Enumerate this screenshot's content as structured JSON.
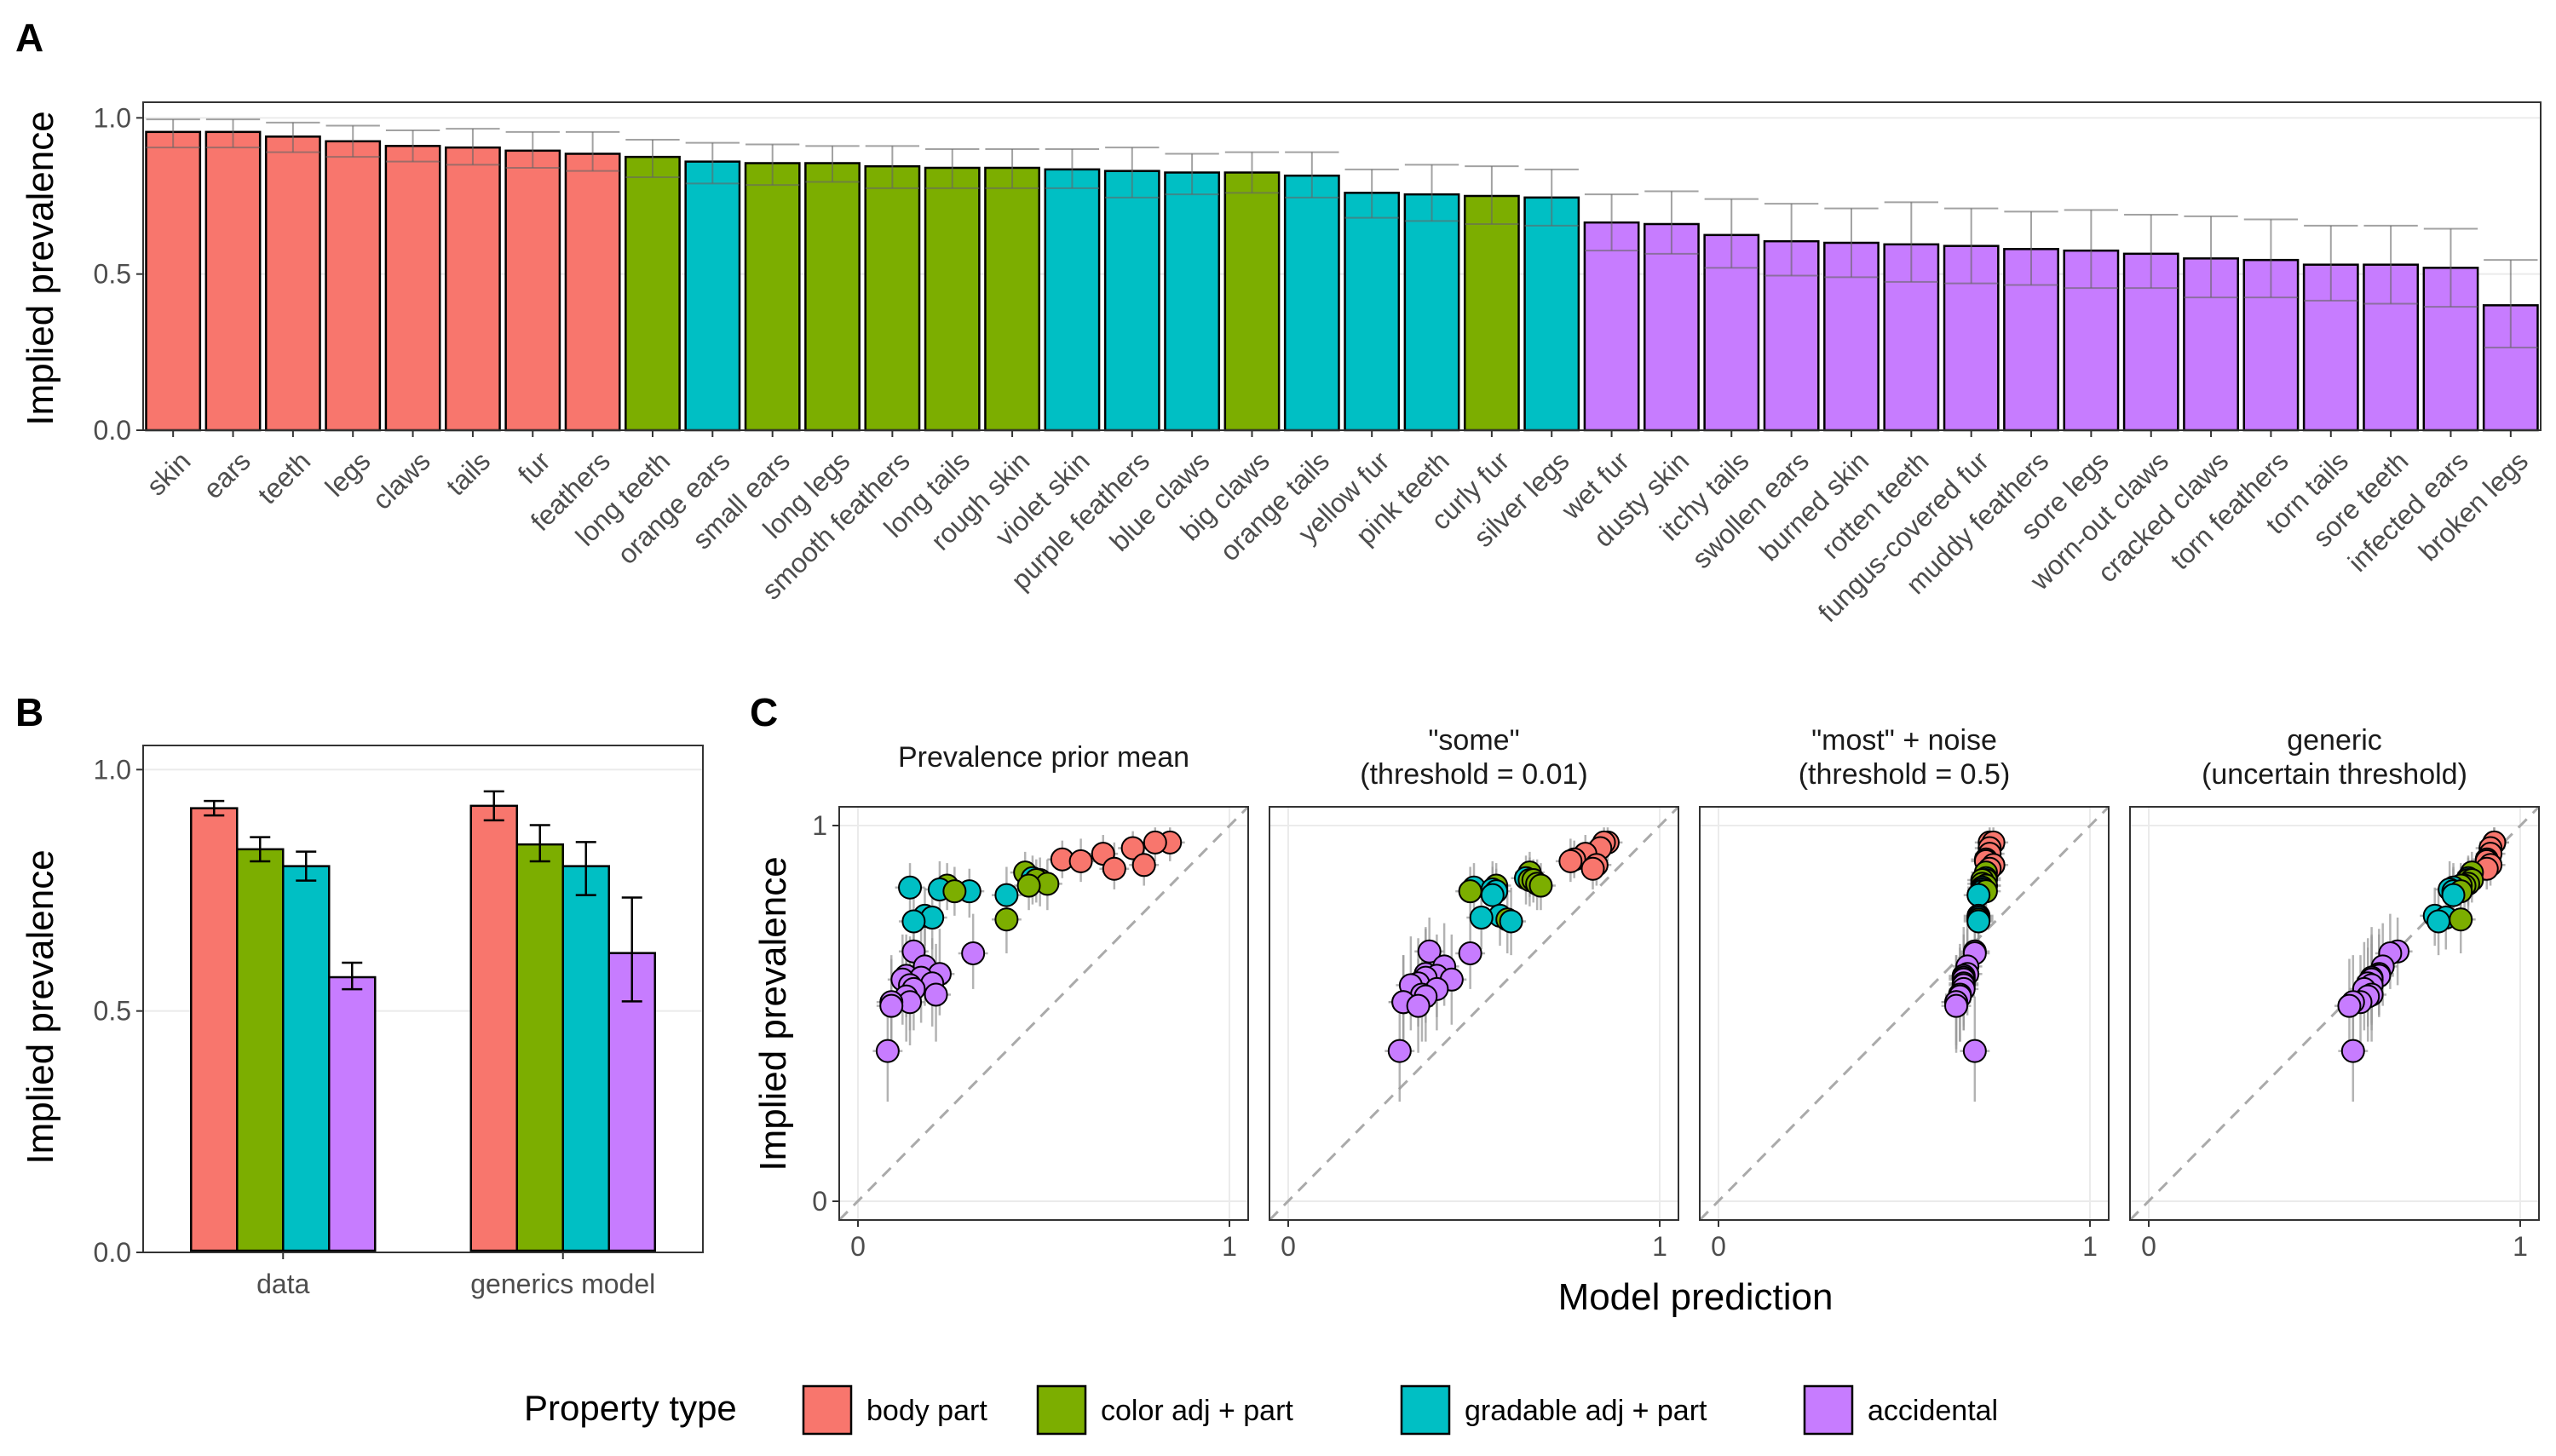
{
  "colors": {
    "body part": "#F8766D",
    "color adj + part": "#7CAE00",
    "gradable adj + part": "#00BFC4",
    "accidental": "#C77CFF"
  },
  "figure": {
    "panel_letters": [
      "A",
      "B",
      "C"
    ],
    "legend": {
      "title": "Property type",
      "entries": [
        "body part",
        "color adj + part",
        "gradable adj + part",
        "accidental"
      ]
    }
  },
  "chart_data": [
    {
      "panel": "A",
      "type": "bar",
      "ylabel": "Implied prevalence",
      "ylim": [
        0,
        1.05
      ],
      "yticks": [
        "0.0",
        "0.5",
        "1.0"
      ],
      "categories": [
        "skin",
        "ears",
        "teeth",
        "legs",
        "claws",
        "tails",
        "fur",
        "feathers",
        "long teeth",
        "orange ears",
        "small ears",
        "long legs",
        "smooth feathers",
        "long tails",
        "rough skin",
        "violet skin",
        "purple feathers",
        "blue claws",
        "big claws",
        "orange tails",
        "yellow fur",
        "pink teeth",
        "curly fur",
        "silver legs",
        "wet fur",
        "dusty skin",
        "itchy tails",
        "swollen ears",
        "burned skin",
        "rotten teeth",
        "fungus-covered fur",
        "muddy feathers",
        "sore legs",
        "worn-out claws",
        "cracked claws",
        "torn feathers",
        "torn tails",
        "sore teeth",
        "infected ears",
        "broken legs"
      ],
      "types": [
        "body part",
        "body part",
        "body part",
        "body part",
        "body part",
        "body part",
        "body part",
        "body part",
        "color adj + part",
        "gradable adj + part",
        "color adj + part",
        "color adj + part",
        "color adj + part",
        "color adj + part",
        "color adj + part",
        "gradable adj + part",
        "gradable adj + part",
        "gradable adj + part",
        "color adj + part",
        "gradable adj + part",
        "gradable adj + part",
        "gradable adj + part",
        "color adj + part",
        "gradable adj + part",
        "accidental",
        "accidental",
        "accidental",
        "accidental",
        "accidental",
        "accidental",
        "accidental",
        "accidental",
        "accidental",
        "accidental",
        "accidental",
        "accidental",
        "accidental",
        "accidental",
        "accidental",
        "accidental"
      ],
      "values": [
        0.955,
        0.955,
        0.94,
        0.925,
        0.91,
        0.905,
        0.895,
        0.885,
        0.875,
        0.86,
        0.855,
        0.855,
        0.845,
        0.84,
        0.84,
        0.835,
        0.83,
        0.825,
        0.825,
        0.815,
        0.76,
        0.755,
        0.75,
        0.745,
        0.665,
        0.66,
        0.625,
        0.605,
        0.6,
        0.595,
        0.59,
        0.58,
        0.575,
        0.565,
        0.55,
        0.545,
        0.53,
        0.53,
        0.52,
        0.4
      ],
      "err_low": [
        0.905,
        0.905,
        0.89,
        0.875,
        0.86,
        0.85,
        0.84,
        0.83,
        0.81,
        0.79,
        0.785,
        0.795,
        0.775,
        0.775,
        0.775,
        0.775,
        0.745,
        0.755,
        0.76,
        0.745,
        0.68,
        0.67,
        0.66,
        0.655,
        0.575,
        0.565,
        0.52,
        0.495,
        0.49,
        0.475,
        0.47,
        0.465,
        0.455,
        0.455,
        0.425,
        0.425,
        0.415,
        0.405,
        0.395,
        0.265
      ],
      "err_high": [
        0.995,
        0.995,
        0.985,
        0.975,
        0.96,
        0.965,
        0.955,
        0.955,
        0.93,
        0.92,
        0.915,
        0.91,
        0.91,
        0.9,
        0.9,
        0.9,
        0.905,
        0.885,
        0.89,
        0.89,
        0.835,
        0.85,
        0.845,
        0.835,
        0.755,
        0.765,
        0.74,
        0.725,
        0.71,
        0.73,
        0.71,
        0.7,
        0.705,
        0.69,
        0.685,
        0.675,
        0.655,
        0.655,
        0.645,
        0.545
      ]
    },
    {
      "panel": "B",
      "type": "bar",
      "ylabel": "Implied prevalence",
      "ylim": [
        0,
        1.05
      ],
      "yticks": [
        "0.0",
        "0.5",
        "1.0"
      ],
      "categories": [
        "data",
        "generics model"
      ],
      "series": [
        {
          "name": "body part",
          "values": [
            0.92,
            0.925
          ],
          "err_low": [
            0.905,
            0.895
          ],
          "err_high": [
            0.935,
            0.955
          ]
        },
        {
          "name": "color adj + part",
          "values": [
            0.835,
            0.845
          ],
          "err_low": [
            0.81,
            0.81
          ],
          "err_high": [
            0.86,
            0.885
          ]
        },
        {
          "name": "gradable adj + part",
          "values": [
            0.8,
            0.8
          ],
          "err_low": [
            0.77,
            0.74
          ],
          "err_high": [
            0.83,
            0.85
          ]
        },
        {
          "name": "accidental",
          "values": [
            0.57,
            0.62
          ],
          "err_low": [
            0.545,
            0.52
          ],
          "err_high": [
            0.6,
            0.735
          ]
        }
      ]
    },
    {
      "panel": "C",
      "type": "scatter",
      "xlabel": "Model prediction",
      "ylabel": "Implied prevalence",
      "xlim": [
        0,
        1
      ],
      "ylim": [
        0,
        1
      ],
      "ticks": [
        "0",
        "1"
      ],
      "facets": [
        {
          "title_lines": [
            "Prevalence prior mean"
          ],
          "x": [
            0.84,
            0.8,
            0.74,
            0.66,
            0.55,
            0.6,
            0.77,
            0.69,
            0.45,
            0.47,
            0.49,
            0.48,
            0.51,
            0.46,
            0.24,
            0.14,
            0.22,
            0.3,
            0.26,
            0.4,
            0.18,
            0.2,
            0.4,
            0.15,
            0.15,
            0.31,
            0.18,
            0.22,
            0.13,
            0.17,
            0.12,
            0.2,
            0.14,
            0.15,
            0.21,
            0.13,
            0.14,
            0.09,
            0.09,
            0.08
          ]
        },
        {
          "title_lines": [
            "\"some\"",
            "(threshold = 0.01)"
          ],
          "x": [
            0.86,
            0.85,
            0.84,
            0.8,
            0.77,
            0.76,
            0.83,
            0.82,
            0.65,
            0.64,
            0.65,
            0.66,
            0.67,
            0.68,
            0.56,
            0.5,
            0.55,
            0.56,
            0.49,
            0.55,
            0.57,
            0.52,
            0.59,
            0.6,
            0.38,
            0.49,
            0.42,
            0.37,
            0.4,
            0.37,
            0.44,
            0.35,
            0.33,
            0.4,
            0.36,
            0.37,
            0.31,
            0.31,
            0.35,
            0.3
          ]
        },
        {
          "title_lines": [
            "\"most\" + noise",
            "(threshold = 0.5)"
          ],
          "x": [
            0.73,
            0.74,
            0.73,
            0.73,
            0.72,
            0.72,
            0.74,
            0.73,
            0.72,
            0.72,
            0.72,
            0.71,
            0.71,
            0.72,
            0.72,
            0.71,
            0.71,
            0.71,
            0.72,
            0.7,
            0.7,
            0.7,
            0.7,
            0.7,
            0.69,
            0.69,
            0.67,
            0.67,
            0.66,
            0.66,
            0.66,
            0.66,
            0.66,
            0.66,
            0.65,
            0.65,
            0.64,
            0.64,
            0.64,
            0.69
          ]
        },
        {
          "title_lines": [
            "generic",
            "(uncertain threshold)"
          ],
          "x": [
            0.93,
            0.93,
            0.92,
            0.92,
            0.91,
            0.91,
            0.92,
            0.91,
            0.87,
            0.86,
            0.86,
            0.87,
            0.86,
            0.85,
            0.84,
            0.82,
            0.81,
            0.82,
            0.84,
            0.82,
            0.77,
            0.8,
            0.84,
            0.78,
            0.67,
            0.65,
            0.63,
            0.62,
            0.62,
            0.6,
            0.6,
            0.59,
            0.6,
            0.58,
            0.6,
            0.59,
            0.57,
            0.55,
            0.54,
            0.55
          ]
        }
      ]
    }
  ]
}
